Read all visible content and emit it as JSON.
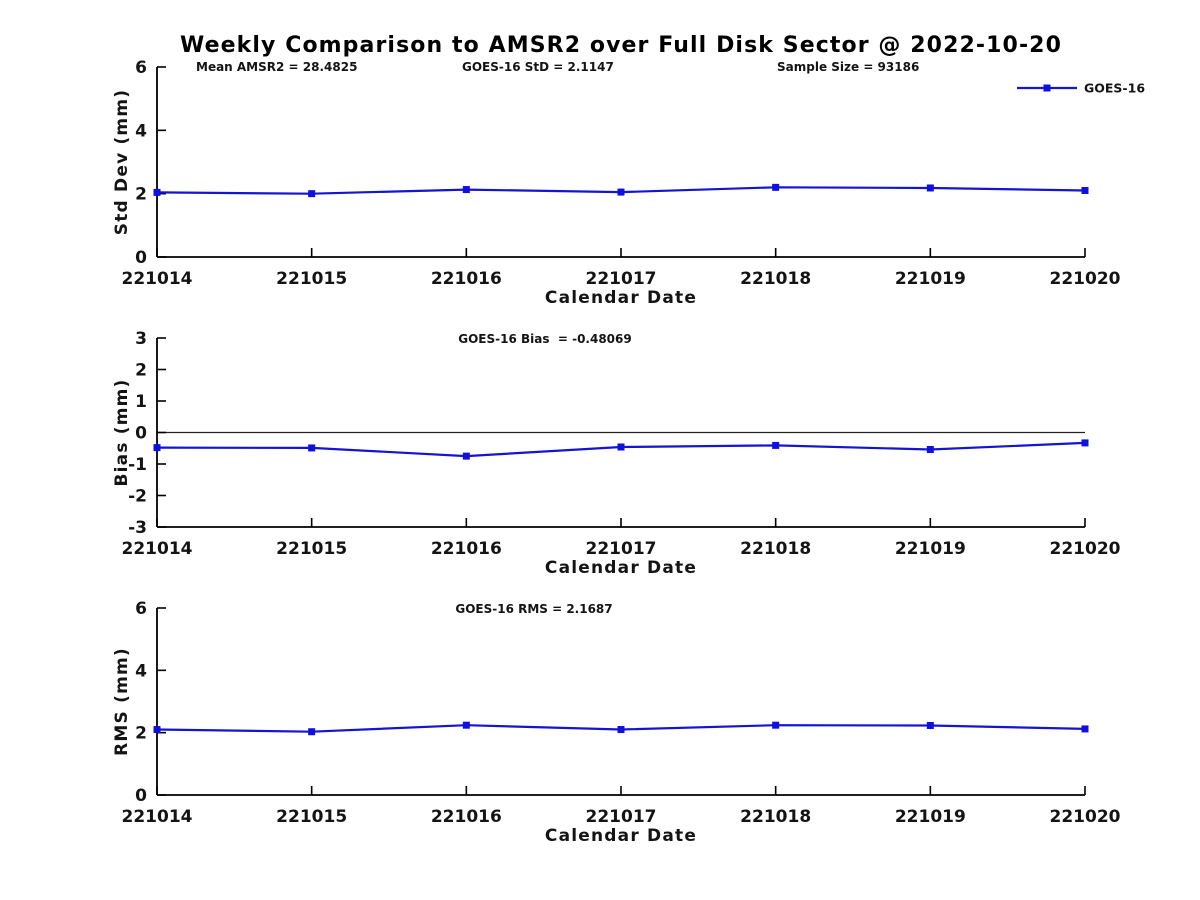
{
  "figure_title": "Weekly Comparison to AMSR2 over Full Disk Sector @ 2022-10-20",
  "legend": {
    "label": "GOES-16"
  },
  "colors": {
    "series_line": "#1414d2",
    "series_marker": "#0f0fe0",
    "axis": "#000000",
    "zero_line": "#222222",
    "text": "#141414"
  },
  "chart_data": [
    {
      "type": "line",
      "subplot": "std-dev",
      "annotations": [
        "Mean AMSR2 = 28.4825",
        "GOES-16 StD = 2.1147",
        "Sample Size = 93186"
      ],
      "categories": [
        "221014",
        "221015",
        "221016",
        "221017",
        "221018",
        "221019",
        "221020"
      ],
      "series": [
        {
          "name": "GOES-16",
          "values": [
            2.04,
            2.0,
            2.13,
            2.05,
            2.2,
            2.18,
            2.1
          ]
        }
      ],
      "xlabel": "Calendar Date",
      "ylabel": "Std Dev (mm)",
      "ylim": [
        0,
        6
      ],
      "yticks": [
        0,
        2,
        4,
        6
      ],
      "grid": false,
      "zero_line": false,
      "legend_position": "top-right-outside"
    },
    {
      "type": "line",
      "subplot": "bias",
      "annotations": [
        "GOES-16 Bias  = -0.48069"
      ],
      "categories": [
        "221014",
        "221015",
        "221016",
        "221017",
        "221018",
        "221019",
        "221020"
      ],
      "series": [
        {
          "name": "GOES-16",
          "values": [
            -0.48,
            -0.49,
            -0.75,
            -0.46,
            -0.41,
            -0.54,
            -0.33
          ]
        }
      ],
      "xlabel": "Calendar Date",
      "ylabel": "Bias (mm)",
      "ylim": [
        -3,
        3
      ],
      "yticks": [
        3,
        2,
        1,
        0,
        -1,
        -2,
        -3
      ],
      "grid": false,
      "zero_line": true,
      "legend_position": "none"
    },
    {
      "type": "line",
      "subplot": "rms",
      "annotations": [
        "GOES-16 RMS = 2.1687"
      ],
      "categories": [
        "221014",
        "221015",
        "221016",
        "221017",
        "221018",
        "221019",
        "221020"
      ],
      "series": [
        {
          "name": "GOES-16",
          "values": [
            2.1,
            2.03,
            2.24,
            2.1,
            2.24,
            2.23,
            2.12
          ]
        }
      ],
      "xlabel": "Calendar Date",
      "ylabel": "RMS (mm)",
      "ylim": [
        0,
        6
      ],
      "yticks": [
        0,
        2,
        4,
        6
      ],
      "grid": false,
      "zero_line": false,
      "legend_position": "none"
    }
  ]
}
